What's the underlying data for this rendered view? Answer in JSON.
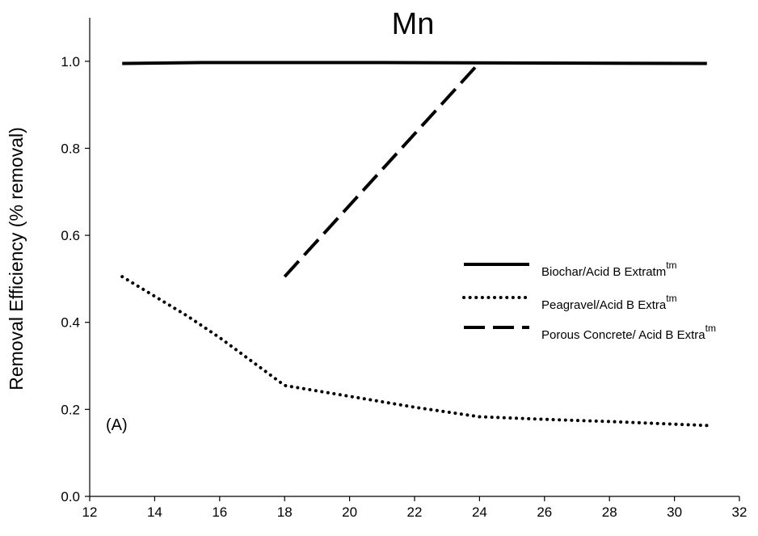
{
  "chart_data": {
    "type": "line",
    "title": "Mn",
    "xlabel": "",
    "ylabel": "Removal Efficiency (% removal)",
    "xlim": [
      12,
      32
    ],
    "ylim": [
      0.0,
      1.1
    ],
    "x_ticks": [
      "12",
      "14",
      "16",
      "18",
      "20",
      "22",
      "24",
      "26",
      "28",
      "30",
      "32"
    ],
    "y_ticks": [
      "0.0",
      "0.2",
      "0.4",
      "0.6",
      "0.8",
      "1.0"
    ],
    "grid": false,
    "legend_position": "right",
    "annotation": "(A)",
    "series": [
      {
        "name": "Biochar/Acid B Extratm",
        "name_sup": "tm",
        "line_style": "solid",
        "color": "#000000",
        "x": [
          13,
          15.5,
          21,
          31
        ],
        "y": [
          0.995,
          0.997,
          0.997,
          0.995
        ]
      },
      {
        "name": "Peagravel/Acid B Extra",
        "name_sup": "tm",
        "line_style": "dotted",
        "color": "#000000",
        "x": [
          13,
          15,
          16,
          17,
          18,
          20,
          22,
          24,
          26,
          28,
          30,
          31
        ],
        "y": [
          0.505,
          0.415,
          0.365,
          0.31,
          0.255,
          0.23,
          0.205,
          0.183,
          0.177,
          0.172,
          0.166,
          0.163
        ]
      },
      {
        "name": "Porous Concrete/ Acid B Extra",
        "name_sup": "tm",
        "line_style": "dashed",
        "color": "#000000",
        "x": [
          18,
          24
        ],
        "y": [
          0.505,
          0.997
        ]
      }
    ]
  }
}
